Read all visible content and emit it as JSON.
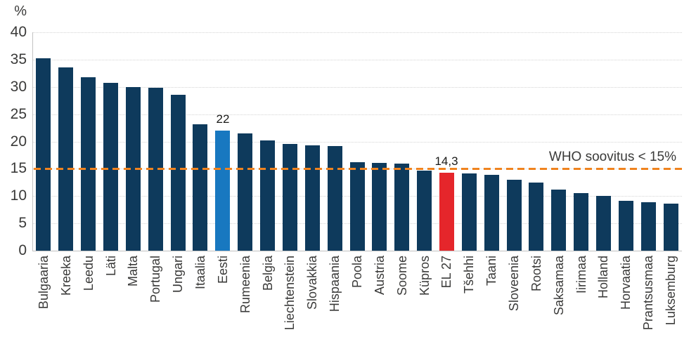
{
  "chart_data": {
    "type": "bar",
    "unit_label": "%",
    "ylim": [
      0,
      40
    ],
    "yticks": [
      0,
      5,
      10,
      15,
      20,
      25,
      30,
      35,
      40
    ],
    "grid": "horizontal-dotted",
    "legend": "none",
    "reference_line": {
      "value": 15,
      "label": "WHO soovitus < 15%",
      "color": "#F0831F",
      "style": "dashed"
    },
    "colors": {
      "default": "#0E3A5C",
      "highlight": "#1878C0",
      "eu": "#E5262B"
    },
    "bars": [
      {
        "label": "Bulgaaria",
        "value": 35.3
      },
      {
        "label": "Kreeka",
        "value": 33.6
      },
      {
        "label": "Leedu",
        "value": 31.8
      },
      {
        "label": "Läti",
        "value": 30.7
      },
      {
        "label": "Malta",
        "value": 30.0
      },
      {
        "label": "Portugal",
        "value": 29.8
      },
      {
        "label": "Ungari",
        "value": 28.5
      },
      {
        "label": "Itaalia",
        "value": 23.1
      },
      {
        "label": "Eesti",
        "value": 22,
        "color": "highlight",
        "value_label": "22"
      },
      {
        "label": "Rumeenia",
        "value": 21.5
      },
      {
        "label": "Belgia",
        "value": 20.2
      },
      {
        "label": "Liechtenstein",
        "value": 19.6
      },
      {
        "label": "Slovakkia",
        "value": 19.3
      },
      {
        "label": "Hispaania",
        "value": 19.2
      },
      {
        "label": "Poola",
        "value": 16.2
      },
      {
        "label": "Austria",
        "value": 16.1
      },
      {
        "label": "Soome",
        "value": 16.0
      },
      {
        "label": "Küpros",
        "value": 14.6
      },
      {
        "label": "EL 27",
        "value": 14.3,
        "color": "eu",
        "value_label": "14,3"
      },
      {
        "label": "Tšehhi",
        "value": 14.1
      },
      {
        "label": "Taani",
        "value": 13.9
      },
      {
        "label": "Sloveenia",
        "value": 13.0
      },
      {
        "label": "Rootsi",
        "value": 12.5
      },
      {
        "label": "Saksamaa",
        "value": 11.2
      },
      {
        "label": "Iirimaa",
        "value": 10.6
      },
      {
        "label": "Holland",
        "value": 10.0
      },
      {
        "label": "Horvaatia",
        "value": 9.1
      },
      {
        "label": "Prantsusmaa",
        "value": 8.9
      },
      {
        "label": "Luksemburg",
        "value": 8.6
      }
    ]
  }
}
